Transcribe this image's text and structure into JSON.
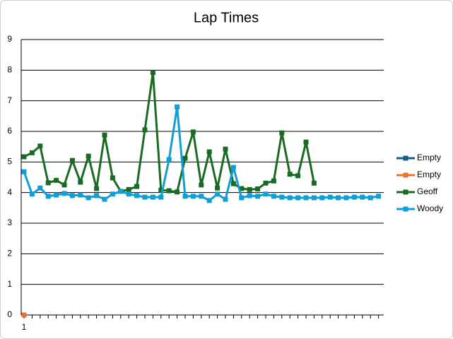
{
  "chart_data": {
    "type": "line",
    "title": "Lap Times",
    "categories": [
      "1",
      null,
      null,
      null,
      null,
      null,
      null,
      null,
      null,
      null,
      null,
      null,
      null,
      null,
      null,
      null,
      null,
      null,
      null,
      null,
      null,
      null,
      null,
      null,
      null,
      null,
      null,
      null,
      null,
      null,
      null,
      null,
      null,
      null,
      null,
      null,
      null,
      null,
      null,
      null,
      null,
      null,
      null,
      null,
      null
    ],
    "series": [
      {
        "name": "Empty",
        "color": "#156082",
        "values": [
          0,
          null,
          null,
          null,
          null,
          null,
          null,
          null,
          null,
          null,
          null,
          null,
          null,
          null,
          null,
          null,
          null,
          null,
          null,
          null,
          null,
          null,
          null,
          null,
          null,
          null,
          null,
          null,
          null,
          null,
          null,
          null,
          null,
          null,
          null,
          null,
          null,
          null,
          null,
          null,
          null,
          null,
          null,
          null,
          null
        ]
      },
      {
        "name": "Empty",
        "color": "#e97132",
        "values": [
          0,
          null,
          null,
          null,
          null,
          null,
          null,
          null,
          null,
          null,
          null,
          null,
          null,
          null,
          null,
          null,
          null,
          null,
          null,
          null,
          null,
          null,
          null,
          null,
          null,
          null,
          null,
          null,
          null,
          null,
          null,
          null,
          null,
          null,
          null,
          null,
          null,
          null,
          null,
          null,
          null,
          null,
          null,
          null,
          null
        ]
      },
      {
        "name": "Geoff",
        "color": "#196b24",
        "values": [
          5.17,
          5.3,
          5.52,
          4.32,
          4.4,
          4.25,
          5.05,
          4.34,
          5.19,
          4.13,
          5.88,
          4.48,
          4.04,
          4.1,
          4.2,
          6.05,
          7.92,
          4.08,
          4.06,
          4.02,
          5.12,
          5.98,
          4.25,
          5.33,
          4.15,
          5.42,
          4.29,
          4.13,
          4.1,
          4.12,
          4.31,
          4.38,
          5.95,
          4.6,
          4.55,
          5.65,
          4.31,
          null,
          null,
          null,
          null,
          null,
          null,
          null,
          null
        ]
      },
      {
        "name": "Woody",
        "color": "#0f9ed5",
        "values": [
          4.68,
          3.95,
          4.15,
          3.88,
          3.92,
          3.97,
          3.9,
          3.92,
          3.83,
          3.9,
          3.78,
          3.95,
          4.04,
          3.95,
          3.9,
          3.85,
          3.85,
          3.85,
          5.08,
          6.8,
          3.88,
          3.88,
          3.88,
          3.74,
          3.95,
          3.78,
          4.82,
          3.83,
          3.9,
          3.88,
          3.95,
          3.88,
          3.85,
          3.83,
          3.83,
          3.83,
          3.83,
          3.83,
          3.85,
          3.83,
          3.83,
          3.85,
          3.85,
          3.83,
          3.88
        ]
      }
    ],
    "ylim": [
      0,
      9
    ],
    "yticks": [
      0,
      1,
      2,
      3,
      4,
      5,
      6,
      7,
      8,
      9
    ],
    "grid": true,
    "legend": "right"
  }
}
